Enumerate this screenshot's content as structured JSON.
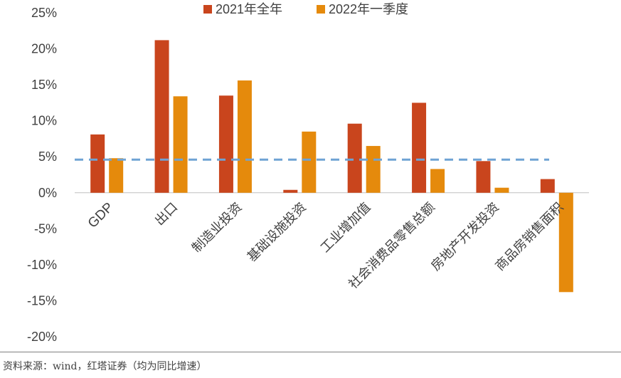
{
  "chart_data": {
    "type": "bar",
    "categories": [
      "GDP",
      "出口",
      "制造业投资",
      "基础设施投资",
      "工业增加值",
      "社会消费品零售总额",
      "房地产开发投资",
      "商品房销售面积"
    ],
    "series": [
      {
        "name": "2021年全年",
        "values": [
          8.1,
          21.2,
          13.5,
          0.4,
          9.6,
          12.5,
          4.4,
          1.9
        ],
        "color": "#c9451d"
      },
      {
        "name": "2022年一季度",
        "values": [
          4.8,
          13.4,
          15.6,
          8.5,
          6.5,
          3.3,
          0.7,
          -13.8
        ],
        "color": "#e58a0c"
      }
    ],
    "reference_line": {
      "value": 4.6,
      "style": "dashed",
      "color": "#6fa3d4"
    },
    "ylim": [
      -20,
      25
    ],
    "yticks": [
      -20,
      -15,
      -10,
      -5,
      0,
      5,
      10,
      15,
      20,
      25
    ],
    "ytick_suffix": "%",
    "legend_position": "top-center",
    "grid": false,
    "title": "",
    "xlabel": "",
    "ylabel": ""
  },
  "source_note": "资料来源：wind，红塔证券（均为同比增速）"
}
